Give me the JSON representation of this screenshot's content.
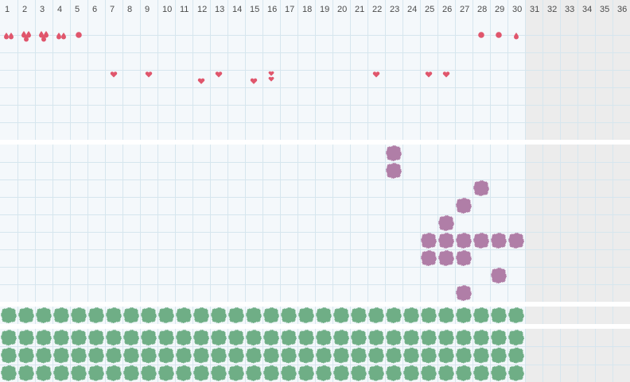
{
  "days": [
    "1",
    "2",
    "3",
    "4",
    "5",
    "6",
    "7",
    "8",
    "9",
    "10",
    "11",
    "12",
    "13",
    "14",
    "15",
    "16",
    "17",
    "18",
    "19",
    "20",
    "21",
    "22",
    "23",
    "24",
    "25",
    "26",
    "27",
    "28",
    "29",
    "30",
    "31",
    "32",
    "33",
    "34",
    "35",
    "36"
  ],
  "active_days": 30,
  "colors": {
    "grid_line": "#d6e6ee",
    "band_bg": "#f4f8fb",
    "inactive_bg": "#ececec",
    "separator": "#ffffff",
    "red_symbol": "#e0566c",
    "purple_blob": "#b07ea7",
    "green_blob": "#6fae86"
  },
  "section_1": {
    "row_1": [
      {
        "day": 1,
        "icon": "drop-icon",
        "count": 2
      },
      {
        "day": 2,
        "icon": "drop-icon",
        "count": 3
      },
      {
        "day": 3,
        "icon": "drop-icon",
        "count": 3
      },
      {
        "day": 4,
        "icon": "drop-icon",
        "count": 2
      },
      {
        "day": 5,
        "icon": "dot-icon",
        "count": 1
      },
      {
        "day": 28,
        "icon": "dot-icon",
        "count": 1
      },
      {
        "day": 29,
        "icon": "dot-icon",
        "count": 1
      },
      {
        "day": 30,
        "icon": "drop-icon",
        "count": 1
      }
    ],
    "row_2": [],
    "row_3": [
      {
        "day": 7,
        "icon": "heart-icon",
        "count": 1,
        "level": 1
      },
      {
        "day": 9,
        "icon": "heart-icon",
        "count": 1,
        "level": 1
      },
      {
        "day": 12,
        "icon": "heart-icon",
        "count": 1,
        "level": 0.3
      },
      {
        "day": 13,
        "icon": "heart-icon",
        "count": 1,
        "level": 1
      },
      {
        "day": 15,
        "icon": "heart-icon",
        "count": 1,
        "level": 0.3
      },
      {
        "day": 16,
        "icon": "heart-icon",
        "count": 2,
        "level": 0.6
      },
      {
        "day": 22,
        "icon": "heart-icon",
        "count": 1,
        "level": 1
      },
      {
        "day": 25,
        "icon": "heart-icon",
        "count": 1,
        "level": 1
      },
      {
        "day": 26,
        "icon": "heart-icon",
        "count": 1,
        "level": 1
      }
    ]
  },
  "section_2": {
    "row_count": 9,
    "purple_cells": [
      {
        "day": 23,
        "row": 1
      },
      {
        "day": 23,
        "row": 2
      },
      {
        "day": 28,
        "row": 3
      },
      {
        "day": 27,
        "row": 4
      },
      {
        "day": 26,
        "row": 5
      },
      {
        "day": 25,
        "row": 6
      },
      {
        "day": 26,
        "row": 6
      },
      {
        "day": 27,
        "row": 6
      },
      {
        "day": 28,
        "row": 6
      },
      {
        "day": 29,
        "row": 6
      },
      {
        "day": 30,
        "row": 6
      },
      {
        "day": 25,
        "row": 7
      },
      {
        "day": 26,
        "row": 7
      },
      {
        "day": 27,
        "row": 7
      },
      {
        "day": 29,
        "row": 8
      },
      {
        "day": 27,
        "row": 9
      }
    ]
  },
  "section_3": {
    "rows": 1,
    "filled_days": 30
  },
  "section_4": {
    "rows": 3,
    "filled_days": 30
  }
}
